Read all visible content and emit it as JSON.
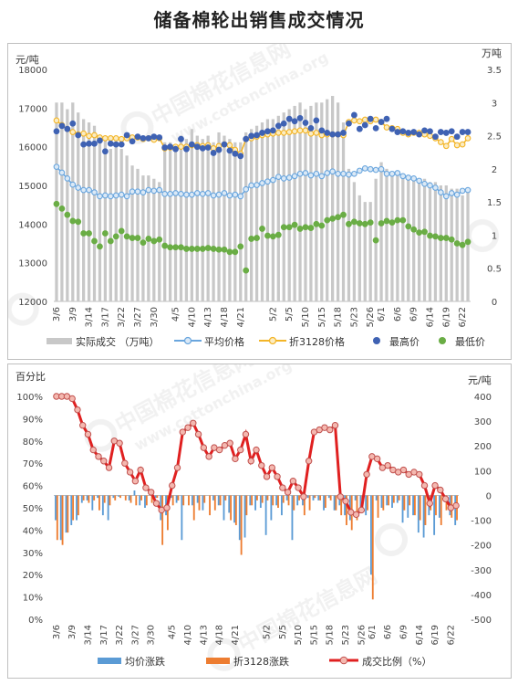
{
  "title": "储备棉轮出销售成交情况",
  "dates": [
    "3/6",
    "3/7",
    "3/8",
    "3/9",
    "3/10",
    "3/13",
    "3/14",
    "3/15",
    "3/16",
    "3/17",
    "3/20",
    "3/21",
    "3/22",
    "3/23",
    "3/24",
    "3/27",
    "3/28",
    "3/29",
    "3/30",
    "3/31",
    "4/3",
    "4/4",
    "4/5",
    "4/6",
    "4/7",
    "4/10",
    "4/11",
    "4/12",
    "4/13",
    "4/14",
    "4/17",
    "4/18",
    "4/19",
    "4/20",
    "4/21",
    "4/24",
    "4/25",
    "4/26",
    "4/27",
    "4/28",
    "5/2",
    "5/3",
    "5/4",
    "5/5",
    "5/8",
    "5/9",
    "5/10",
    "5/11",
    "5/12",
    "5/15",
    "5/16",
    "5/17",
    "5/18",
    "5/19",
    "5/22",
    "5/23",
    "5/24",
    "5/25",
    "5/26",
    "5/31",
    "6/1",
    "6/2",
    "6/5",
    "6/6",
    "6/7",
    "6/8",
    "6/9",
    "6/12",
    "6/13",
    "6/14",
    "6/15",
    "6/16",
    "6/19",
    "6/20",
    "6/21",
    "6/22",
    "6/23"
  ],
  "x_tick_labels": [
    "3/6",
    "3/9",
    "3/14",
    "3/17",
    "3/22",
    "3/27",
    "3/30",
    "4/5",
    "4/10",
    "4/13",
    "4/18",
    "4/21",
    "5/2",
    "5/5",
    "5/10",
    "5/15",
    "5/18",
    "5/23",
    "5/26",
    "6/1",
    "6/6",
    "6/9",
    "6/14",
    "6/19",
    "6/22"
  ],
  "chart_data": [
    {
      "type": "bar+line+scatter",
      "ylabel_left": "元/吨",
      "ylabel_right": "万吨",
      "ylim_left": [
        12000,
        18000
      ],
      "yticks_left": [
        "12000",
        "13000",
        "14000",
        "15000",
        "16000",
        "17000",
        "18000"
      ],
      "ylim_right": [
        0,
        3.5
      ],
      "yticks_right": [
        "0",
        "0.5",
        "1",
        "1.5",
        "2",
        "2.5",
        "3",
        "3.5"
      ],
      "legend_position": "bottom",
      "grid": false,
      "colors": {
        "volume": "#c8c8c8",
        "avg": "#6aa6de",
        "avg_fill": "#dbe9f6",
        "p3128": "#f3b528",
        "p3128_fill": "#fbecc2",
        "high": "#3f62b3",
        "low": "#6aad45"
      },
      "series": [
        {
          "name": "实际成交 （万吨）",
          "axis": "right",
          "style": "bar",
          "values": [
            3.0,
            3.0,
            2.9,
            3.0,
            2.85,
            2.75,
            2.7,
            2.65,
            2.5,
            2.5,
            2.3,
            2.4,
            2.3,
            2.2,
            2.05,
            2.0,
            1.9,
            1.9,
            1.85,
            1.8,
            2.4,
            2.4,
            2.35,
            2.5,
            2.45,
            2.6,
            2.5,
            2.45,
            2.5,
            2.4,
            2.55,
            2.5,
            2.45,
            2.4,
            2.4,
            2.55,
            2.6,
            2.65,
            2.7,
            2.75,
            2.75,
            2.8,
            2.85,
            2.9,
            2.95,
            3.0,
            2.9,
            2.95,
            3.0,
            3.0,
            3.05,
            3.1,
            3.0,
            2.7,
            2.0,
            1.8,
            1.6,
            1.5,
            1.5,
            1.85,
            2.1,
            2.0,
            1.95,
            1.9,
            1.9,
            1.85,
            1.85,
            1.8,
            1.85,
            1.8,
            1.8,
            1.75,
            1.75,
            1.7,
            1.7,
            1.6,
            1.65
          ]
        },
        {
          "name": "平均价格",
          "axis": "left",
          "style": "line-marker",
          "values": [
            15480,
            15330,
            15180,
            15020,
            14940,
            14880,
            14880,
            14820,
            14720,
            14740,
            14720,
            14740,
            14760,
            14720,
            14840,
            14840,
            14820,
            14880,
            14860,
            14880,
            14780,
            14780,
            14800,
            14780,
            14760,
            14760,
            14800,
            14780,
            14800,
            14740,
            14760,
            14800,
            14740,
            14760,
            14720,
            14900,
            15000,
            15010,
            15060,
            15100,
            15140,
            15220,
            15180,
            15200,
            15240,
            15300,
            15320,
            15260,
            15300,
            15240,
            15320,
            15360,
            15300,
            15300,
            15280,
            15300,
            15380,
            15440,
            15420,
            15400,
            15420,
            15300,
            15300,
            15320,
            15240,
            15200,
            15180,
            15120,
            15040,
            15000,
            14940,
            14820,
            14720,
            14800,
            14760,
            14860,
            14880
          ]
        },
        {
          "name": "折3128价格",
          "axis": "left",
          "style": "line-marker",
          "values": [
            16680,
            16560,
            16460,
            16380,
            16320,
            16340,
            16280,
            16300,
            16240,
            16220,
            16220,
            16220,
            16200,
            16220,
            16240,
            16240,
            16200,
            16220,
            16180,
            16220,
            15960,
            15980,
            16000,
            16000,
            16000,
            16040,
            16040,
            16020,
            16040,
            15960,
            16020,
            16060,
            16040,
            15920,
            15820,
            16200,
            16220,
            16260,
            16300,
            16320,
            16340,
            16360,
            16360,
            16380,
            16400,
            16420,
            16420,
            16340,
            16360,
            16300,
            16320,
            16320,
            16320,
            16300,
            16640,
            16680,
            16660,
            16700,
            16660,
            16700,
            16640,
            16500,
            16480,
            16460,
            16360,
            16320,
            16360,
            16360,
            16320,
            16280,
            16220,
            16120,
            16020,
            16200,
            16040,
            16060,
            16220
          ]
        },
        {
          "name": "最高价",
          "axis": "left",
          "style": "scatter",
          "values": [
            16400,
            16540,
            16460,
            16600,
            16300,
            16060,
            16080,
            16080,
            16160,
            15880,
            16080,
            16060,
            16060,
            16300,
            16140,
            16260,
            16220,
            16220,
            16260,
            16240,
            15980,
            16000,
            15940,
            16200,
            15940,
            16060,
            16000,
            15960,
            15980,
            15840,
            15920,
            16060,
            15900,
            15820,
            15760,
            16200,
            16280,
            16300,
            16360,
            16400,
            16420,
            16540,
            16600,
            16720,
            16660,
            16740,
            16620,
            16480,
            16680,
            16420,
            16360,
            16320,
            16320,
            16360,
            16600,
            16820,
            16460,
            16560,
            16720,
            16480,
            16640,
            16720,
            16460,
            16380,
            16400,
            16360,
            16380,
            16320,
            16420,
            16400,
            16260,
            16380,
            16360,
            16400,
            16260,
            16380,
            16380
          ]
        },
        {
          "name": "最低价",
          "axis": "left",
          "style": "scatter",
          "values": [
            14520,
            14400,
            14240,
            14080,
            14060,
            13760,
            13760,
            13560,
            13420,
            13760,
            13560,
            13680,
            13820,
            13680,
            13640,
            13640,
            13520,
            13620,
            13560,
            13600,
            13440,
            13400,
            13400,
            13400,
            13360,
            13360,
            13360,
            13360,
            13380,
            13360,
            13340,
            13340,
            13280,
            13280,
            13420,
            12800,
            13620,
            13640,
            13880,
            13700,
            13680,
            13720,
            13920,
            13920,
            13980,
            13880,
            13920,
            13900,
            14000,
            13960,
            14100,
            14140,
            14180,
            14240,
            14000,
            14060,
            14020,
            14000,
            14040,
            13580,
            14020,
            14080,
            14040,
            14100,
            14100,
            13940,
            13860,
            13780,
            13800,
            13700,
            13680,
            13640,
            13640,
            13600,
            13500,
            13460,
            13540
          ]
        }
      ]
    },
    {
      "type": "bar+line",
      "ylabel_left": "百分比",
      "ylabel_right": "元/吨",
      "ylim_left": [
        0,
        100
      ],
      "yticks_left": [
        "0%",
        "10%",
        "20%",
        "30%",
        "40%",
        "50%",
        "60%",
        "70%",
        "80%",
        "90%",
        "100%"
      ],
      "ylim_right": [
        -500,
        400
      ],
      "yticks_right": [
        "-500",
        "-400",
        "-300",
        "-200",
        "-100",
        "0",
        "100",
        "200",
        "300",
        "400"
      ],
      "legend_position": "bottom",
      "grid": false,
      "colors": {
        "avg_change": "#5b9bd5",
        "p3128_change": "#ed7d31",
        "ratio_line": "#e02020",
        "ratio_marker_fill": "#f4b8b0"
      },
      "series": [
        {
          "name": "均价涨跌",
          "axis": "right",
          "style": "bar",
          "values": [
            -100,
            -180,
            -150,
            -120,
            -100,
            -30,
            -20,
            -60,
            -10,
            -80,
            -100,
            -10,
            -5,
            0,
            -20,
            20,
            -40,
            -50,
            0,
            -10,
            -100,
            -80,
            -10,
            -30,
            -180,
            0,
            -40,
            -30,
            -60,
            0,
            -20,
            -40,
            -100,
            -70,
            -110,
            -180,
            -170,
            -40,
            -60,
            -50,
            -160,
            -100,
            -40,
            -80,
            -20,
            -180,
            -40,
            -40,
            -10,
            -20,
            -20,
            -60,
            -10,
            -60,
            -40,
            -80,
            -100,
            -20,
            -60,
            -80,
            -320,
            -20,
            -50,
            -40,
            -50,
            -30,
            -110,
            -90,
            -80,
            -150,
            -170,
            -80,
            -160,
            -90,
            -20,
            -80,
            -120
          ]
        },
        {
          "name": "折3128涨跌",
          "axis": "right",
          "style": "bar",
          "values": [
            -180,
            -200,
            -150,
            -100,
            -80,
            -20,
            -30,
            -20,
            -60,
            -30,
            -40,
            -20,
            -10,
            -20,
            -30,
            -40,
            -20,
            -40,
            -30,
            -10,
            -200,
            -140,
            -40,
            -20,
            -40,
            -40,
            -100,
            -60,
            -30,
            -80,
            -60,
            -40,
            -20,
            -100,
            -120,
            -240,
            -80,
            -40,
            -20,
            -30,
            -20,
            -40,
            -50,
            -30,
            -40,
            -60,
            -20,
            -80,
            -60,
            -10,
            -20,
            -50,
            -20,
            -60,
            -80,
            -120,
            -140,
            -100,
            -40,
            -60,
            -420,
            -90,
            -60,
            -40,
            -30,
            -20,
            -60,
            -40,
            -80,
            -100,
            -120,
            -60,
            -80,
            -120,
            -60,
            -90,
            -100
          ]
        },
        {
          "name": "成交比例（%）",
          "axis": "left",
          "style": "line-marker",
          "values": [
            100,
            100,
            100,
            99,
            94,
            87,
            83,
            76,
            73,
            71,
            68,
            80,
            79,
            70,
            66,
            62,
            67,
            59,
            57,
            52,
            49,
            50,
            60,
            68,
            84,
            86,
            88,
            83,
            77,
            73,
            77,
            76,
            78,
            79,
            72,
            76,
            83,
            71,
            76,
            69,
            64,
            68,
            64,
            59,
            57,
            62,
            59,
            55,
            71,
            84,
            85,
            86,
            85,
            87,
            55,
            53,
            48,
            47,
            49,
            65,
            73,
            72,
            68,
            69,
            67,
            66,
            67,
            65,
            66,
            65,
            60,
            52,
            60,
            58,
            54,
            50,
            51
          ]
        }
      ]
    }
  ],
  "legend1": [
    "实际成交 （万吨）",
    "平均价格",
    "折3128价格",
    "最高价",
    "最低价"
  ],
  "legend2": [
    "均价涨跌",
    "折3128涨跌",
    "成交比例（%）"
  ],
  "axis_units": {
    "p1_left": "元/吨",
    "p1_right": "万吨",
    "p2_left": "百分比",
    "p2_right": "元/吨"
  },
  "watermark": "中国棉花信息网 www.cottonchina.org"
}
